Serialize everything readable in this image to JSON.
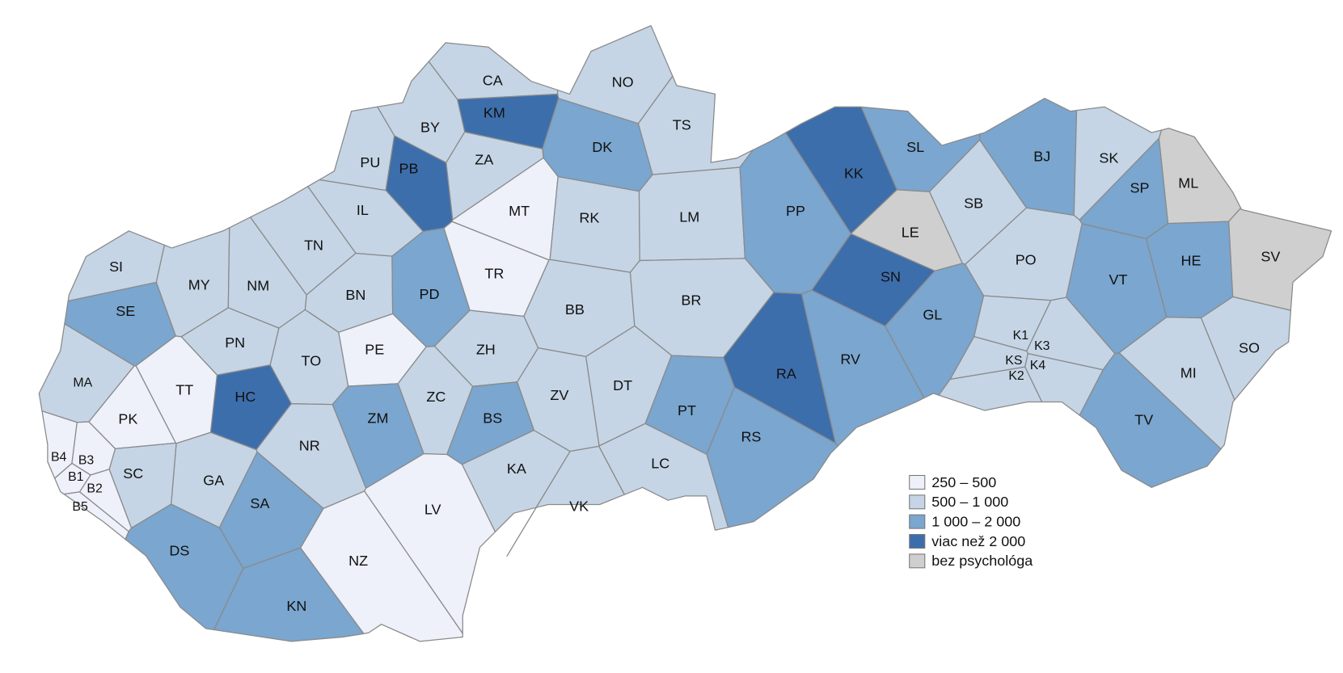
{
  "map": {
    "districts": [
      {
        "label": "CA",
        "class": 1
      },
      {
        "label": "NO",
        "class": 1
      },
      {
        "label": "KM",
        "class": 3
      },
      {
        "label": "BY",
        "class": 1
      },
      {
        "label": "PB",
        "class": 3
      },
      {
        "label": "PU",
        "class": 1
      },
      {
        "label": "ZA",
        "class": 1
      },
      {
        "label": "DK",
        "class": 2
      },
      {
        "label": "TS",
        "class": 1
      },
      {
        "label": "MT",
        "class": 0
      },
      {
        "label": "IL",
        "class": 1
      },
      {
        "label": "RK",
        "class": 1
      },
      {
        "label": "LM",
        "class": 1
      },
      {
        "label": "SL",
        "class": 2
      },
      {
        "label": "KK",
        "class": 3
      },
      {
        "label": "BJ",
        "class": 2
      },
      {
        "label": "SK",
        "class": 1
      },
      {
        "label": "ML",
        "class": 4
      },
      {
        "label": "SP",
        "class": 2
      },
      {
        "label": "SB",
        "class": 1
      },
      {
        "label": "PP",
        "class": 2
      },
      {
        "label": "LE",
        "class": 4
      },
      {
        "label": "SV",
        "class": 4
      },
      {
        "label": "HE",
        "class": 2
      },
      {
        "label": "PO",
        "class": 1
      },
      {
        "label": "VT",
        "class": 2
      },
      {
        "label": "SN",
        "class": 3
      },
      {
        "label": "GL",
        "class": 2
      },
      {
        "label": "SI",
        "class": 1
      },
      {
        "label": "MY",
        "class": 1
      },
      {
        "label": "NM",
        "class": 1
      },
      {
        "label": "TN",
        "class": 1
      },
      {
        "label": "BN",
        "class": 1
      },
      {
        "label": "PD",
        "class": 2
      },
      {
        "label": "TR",
        "class": 0
      },
      {
        "label": "BB",
        "class": 1
      },
      {
        "label": "BR",
        "class": 1
      },
      {
        "label": "SE",
        "class": 2
      },
      {
        "label": "PN",
        "class": 1
      },
      {
        "label": "TO",
        "class": 1
      },
      {
        "label": "PE",
        "class": 0
      },
      {
        "label": "ZH",
        "class": 1
      },
      {
        "label": "RV",
        "class": 2
      },
      {
        "label": "RA",
        "class": 3
      },
      {
        "label": "K1",
        "class": 1
      },
      {
        "label": "K3",
        "class": 1
      },
      {
        "label": "KS",
        "class": 1
      },
      {
        "label": "K4",
        "class": 1
      },
      {
        "label": "K2",
        "class": 1
      },
      {
        "label": "SO",
        "class": 1
      },
      {
        "label": "MI",
        "class": 1
      },
      {
        "label": "MA",
        "class": 1
      },
      {
        "label": "TT",
        "class": 0
      },
      {
        "label": "HC",
        "class": 3
      },
      {
        "label": "ZC",
        "class": 1
      },
      {
        "label": "ZV",
        "class": 1
      },
      {
        "label": "DT",
        "class": 1
      },
      {
        "label": "ZM",
        "class": 2
      },
      {
        "label": "BS",
        "class": 2
      },
      {
        "label": "PT",
        "class": 2
      },
      {
        "label": "RS",
        "class": 2
      },
      {
        "label": "TV",
        "class": 2
      },
      {
        "label": "PK",
        "class": 0
      },
      {
        "label": "NR",
        "class": 1
      },
      {
        "label": "KA",
        "class": 1
      },
      {
        "label": "LC",
        "class": 1
      },
      {
        "label": "SC",
        "class": 1
      },
      {
        "label": "GA",
        "class": 1
      },
      {
        "label": "B4",
        "class": 0
      },
      {
        "label": "B3",
        "class": 0
      },
      {
        "label": "B1",
        "class": 0
      },
      {
        "label": "B2",
        "class": 0
      },
      {
        "label": "B5",
        "class": 0
      },
      {
        "label": "SA",
        "class": 2
      },
      {
        "label": "LV",
        "class": 0
      },
      {
        "label": "VK",
        "class": 1
      },
      {
        "label": "DS",
        "class": 2
      },
      {
        "label": "NZ",
        "class": 0
      },
      {
        "label": "KN",
        "class": 2
      }
    ],
    "legend": [
      {
        "label": "250 – 500",
        "color": "#eef1fa"
      },
      {
        "label": "500 – 1 000",
        "color": "#c5d5e5"
      },
      {
        "label": "1 000 – 2 000",
        "color": "#7aa6cf"
      },
      {
        "label": "viac než 2 000",
        "color": "#3d6eac"
      },
      {
        "label": "bez psychológa",
        "color": "#cfcfcf"
      }
    ]
  }
}
